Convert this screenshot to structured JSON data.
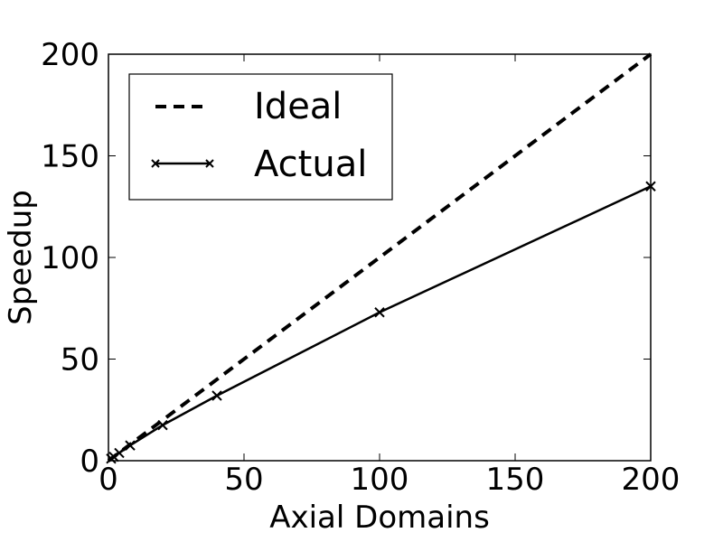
{
  "chart_data": {
    "type": "line",
    "xlabel": "Axial Domains",
    "ylabel": "Speedup",
    "xlim": [
      0,
      200
    ],
    "ylim": [
      0,
      200
    ],
    "x_ticks": [
      0,
      50,
      100,
      150,
      200
    ],
    "y_ticks": [
      0,
      50,
      100,
      150,
      200
    ],
    "x_tick_labels": [
      "0",
      "50",
      "100",
      "150",
      "200"
    ],
    "y_tick_labels": [
      "0",
      "50",
      "100",
      "150",
      "200"
    ],
    "grid": false,
    "legend_position": "top-left",
    "series": [
      {
        "name": "Ideal",
        "style": "dashed",
        "color": "#000000",
        "x": [
          0,
          200
        ],
        "y": [
          0,
          200
        ]
      },
      {
        "name": "Actual",
        "style": "solid",
        "marker": "x",
        "color": "#000000",
        "x": [
          1,
          2,
          4,
          8,
          20,
          40,
          100,
          200
        ],
        "y": [
          1,
          1.9,
          3.8,
          7.5,
          17.5,
          32,
          73,
          135
        ]
      }
    ]
  }
}
